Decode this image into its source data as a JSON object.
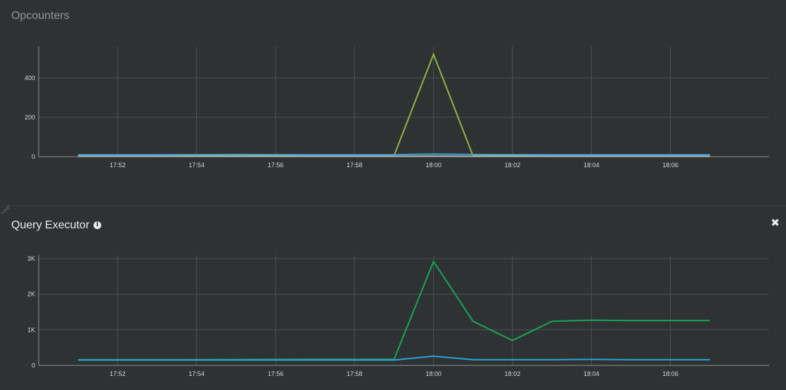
{
  "panels": {
    "opcounters": {
      "title": "Opcounters"
    },
    "query_executor": {
      "title": "Query Executor",
      "info_icon": "info-icon",
      "close_icon": "close-icon",
      "close_glyph": "✖",
      "info_glyph": "i"
    }
  },
  "chart_data": [
    {
      "type": "line",
      "title": "Opcounters",
      "x": [
        "17:51",
        "17:53",
        "17:55",
        "17:57",
        "17:59",
        "18:00",
        "18:01",
        "18:03",
        "18:05",
        "18:07"
      ],
      "xticks": [
        "17:52",
        "17:54",
        "17:56",
        "17:58",
        "18:00",
        "18:02",
        "18:04",
        "18:06"
      ],
      "yticks": [
        "0",
        "200",
        "400"
      ],
      "ylim": [
        0,
        560
      ],
      "grid": true,
      "series": [
        {
          "color": "#8fb347",
          "values": [
            5,
            5,
            5,
            5,
            5,
            520,
            5,
            5,
            5,
            5
          ]
        },
        {
          "color": "#3fa0d8",
          "values": [
            10,
            10,
            11,
            10,
            10,
            14,
            11,
            10,
            10,
            10
          ]
        },
        {
          "color": "#b0b4b5",
          "values": [
            2,
            2,
            2,
            2,
            2,
            3,
            2,
            2,
            2,
            2
          ]
        }
      ]
    },
    {
      "type": "line",
      "title": "Query Executor",
      "x": [
        "17:51",
        "17:53",
        "17:55",
        "17:57",
        "17:59",
        "18:00",
        "18:01",
        "18:02",
        "18:03",
        "18:04",
        "18:05",
        "18:06",
        "18:07"
      ],
      "xticks": [
        "17:52",
        "17:54",
        "17:56",
        "17:58",
        "18:00",
        "18:02",
        "18:04",
        "18:06"
      ],
      "yticks": [
        "0",
        "1K",
        "2K",
        "3K"
      ],
      "ylim": [
        0,
        3100
      ],
      "grid": true,
      "series": [
        {
          "color": "#1aa35a",
          "values": [
            160,
            160,
            165,
            170,
            170,
            2920,
            1240,
            700,
            1240,
            1270,
            1260,
            1260,
            1260
          ]
        },
        {
          "color": "#2aa3d9",
          "values": [
            150,
            150,
            150,
            150,
            150,
            260,
            160,
            160,
            160,
            170,
            160,
            160,
            160
          ]
        }
      ]
    }
  ]
}
